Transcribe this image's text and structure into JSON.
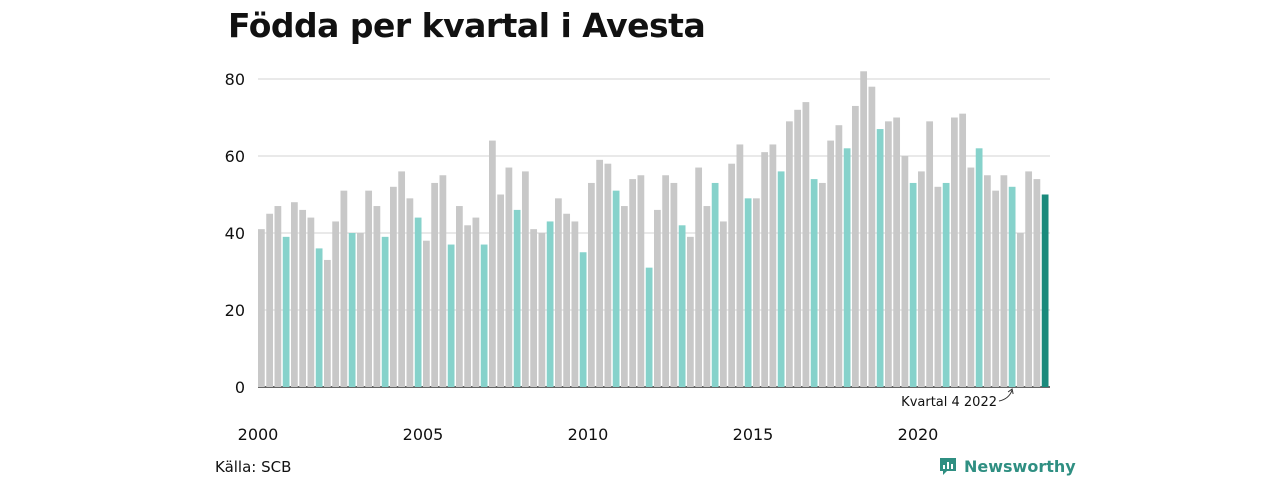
{
  "title": "Födda per kvartal i Avesta",
  "source": "Källa: SCB",
  "brand": {
    "name": "Newsworthy",
    "icon": "newsworthy-logo-icon"
  },
  "colors": {
    "default": "#c8c8c8",
    "q4": "#86d2cb",
    "latest": "#1a8a7c",
    "grid": "#dcdcdc",
    "axis": "#333333"
  },
  "chart_data": {
    "type": "bar",
    "title": "Födda per kvartal i Avesta",
    "xlabel": "",
    "ylabel": "",
    "ylim": [
      0,
      80
    ],
    "yticks": [
      0,
      20,
      40,
      60,
      80
    ],
    "x_tick_labels": [
      "2000",
      "2005",
      "2010",
      "2015",
      "2020"
    ],
    "start_year": 2000,
    "periods_per_year": 4,
    "highlight": "Q4 bars highlighted; latest bar in dark teal",
    "annotation": {
      "text": "Kvartal 4 2022",
      "target_index": 91
    },
    "values": [
      41,
      45,
      47,
      39,
      48,
      46,
      44,
      36,
      33,
      43,
      51,
      40,
      40,
      51,
      47,
      39,
      52,
      56,
      49,
      44,
      38,
      53,
      55,
      37,
      47,
      42,
      44,
      37,
      64,
      50,
      57,
      46,
      56,
      41,
      40,
      43,
      49,
      45,
      43,
      35,
      53,
      59,
      58,
      51,
      47,
      54,
      55,
      31,
      46,
      55,
      53,
      42,
      39,
      57,
      47,
      53,
      43,
      58,
      63,
      49,
      49,
      61,
      63,
      56,
      69,
      72,
      74,
      54,
      53,
      64,
      68,
      62,
      73,
      82,
      78,
      67,
      69,
      70,
      60,
      53,
      56,
      69,
      52,
      53,
      70,
      71,
      57,
      62,
      55,
      51,
      55,
      52,
      40,
      56,
      54,
      50
    ]
  }
}
